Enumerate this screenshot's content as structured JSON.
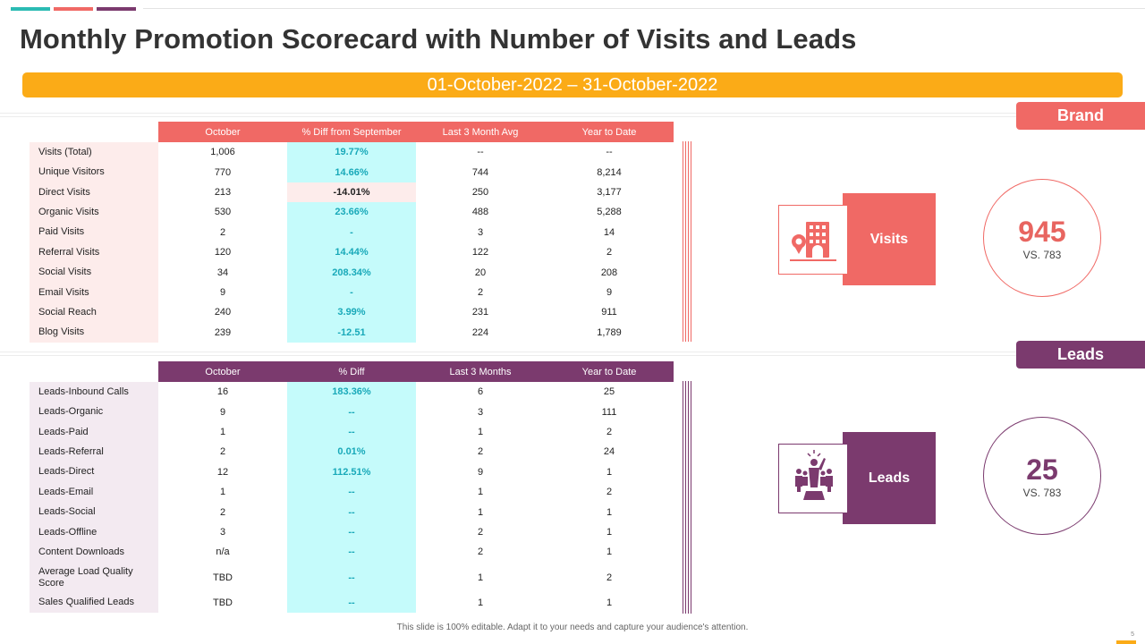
{
  "colors": {
    "teal": "#2bbbb3",
    "salmon": "#f06965",
    "purple": "#7b3a6e",
    "orange": "#fbab17"
  },
  "title": "Monthly Promotion Scorecard with Number of Visits and Leads",
  "date_range": "01-October-2022 – 31-October-2022",
  "visits_table": {
    "headers": [
      "October",
      "% Diff from September",
      "Last 3 Month Avg",
      "Year to Date"
    ],
    "rows": [
      {
        "label": "Visits (Total)",
        "october": "1,006",
        "diff": "19.77%",
        "avg": "--",
        "ytd": "--"
      },
      {
        "label": "Unique Visitors",
        "october": "770",
        "diff": "14.66%",
        "avg": "744",
        "ytd": "8,214"
      },
      {
        "label": "Direct Visits",
        "october": "213",
        "diff": "-14.01%",
        "avg": "250",
        "ytd": "3,177"
      },
      {
        "label": "Organic Visits",
        "october": "530",
        "diff": "23.66%",
        "avg": "488",
        "ytd": "5,288"
      },
      {
        "label": "Paid Visits",
        "october": "2",
        "diff": "-",
        "avg": "3",
        "ytd": "14"
      },
      {
        "label": "Referral Visits",
        "october": "120",
        "diff": "14.44%",
        "avg": "122",
        "ytd": "2"
      },
      {
        "label": "Social Visits",
        "october": "34",
        "diff": "208.34%",
        "avg": "20",
        "ytd": "208"
      },
      {
        "label": "Email Visits",
        "october": "9",
        "diff": "-",
        "avg": "2",
        "ytd": "9"
      },
      {
        "label": "Social Reach",
        "october": "240",
        "diff": "3.99%",
        "avg": "231",
        "ytd": "911"
      },
      {
        "label": "Blog Visits",
        "october": "239",
        "diff": "-12.51",
        "avg": "224",
        "ytd": "1,789"
      }
    ]
  },
  "leads_table": {
    "headers": [
      "October",
      "% Diff",
      "Last 3 Months",
      "Year to  Date"
    ],
    "rows": [
      {
        "label": "Leads-Inbound Calls",
        "october": "16",
        "diff": "183.36%",
        "avg": "6",
        "ytd": "25"
      },
      {
        "label": "Leads-Organic",
        "october": "9",
        "diff": "--",
        "avg": "3",
        "ytd": "111"
      },
      {
        "label": "Leads-Paid",
        "october": "1",
        "diff": "--",
        "avg": "1",
        "ytd": "2"
      },
      {
        "label": "Leads-Referral",
        "october": "2",
        "diff": "0.01%",
        "avg": "2",
        "ytd": "24"
      },
      {
        "label": "Leads-Direct",
        "october": "12",
        "diff": "112.51%",
        "avg": "9",
        "ytd": "1"
      },
      {
        "label": "Leads-Email",
        "october": "1",
        "diff": "--",
        "avg": "1",
        "ytd": "2"
      },
      {
        "label": "Leads-Social",
        "october": "2",
        "diff": "--",
        "avg": "1",
        "ytd": "1"
      },
      {
        "label": "Leads-Offline",
        "october": "3",
        "diff": "--",
        "avg": "2",
        "ytd": "1"
      },
      {
        "label": "Content Downloads",
        "october": "n/a",
        "diff": "--",
        "avg": "2",
        "ytd": "1"
      },
      {
        "label": "Average Load Quality Score",
        "october": "TBD",
        "diff": "--",
        "avg": "1",
        "ytd": "2"
      },
      {
        "label": "Sales Qualified Leads",
        "october": "TBD",
        "diff": "--",
        "avg": "1",
        "ytd": "1"
      }
    ]
  },
  "brand_panel": {
    "badge": "Brand",
    "metric_label": "Visits",
    "icon": "building-location-icon",
    "value": "945",
    "comparison": "VS. 783"
  },
  "leads_panel": {
    "badge": "Leads",
    "metric_label": "Leads",
    "icon": "leader-team-icon",
    "value": "25",
    "comparison": "VS. 783"
  },
  "footer": "This slide is 100% editable. Adapt it to your needs and capture your audience's attention.",
  "page_number": "5"
}
